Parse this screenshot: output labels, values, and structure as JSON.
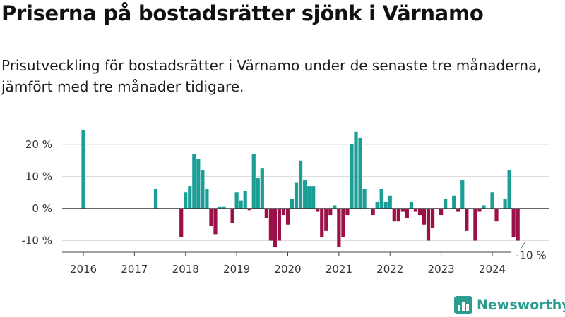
{
  "title": "Priserna på bostadsrätter sjönk i Värnamo",
  "subtitle": "Prisutveckling för bostadsrätter i Värnamo under de senaste tre månaderna, jämfört med tre månader tidigare.",
  "logo": {
    "icon": "bar-chart-icon",
    "text": "Newsworthy"
  },
  "colors": {
    "positive": "#1a9e96",
    "negative": "#9c1049",
    "grid": "#dddddd",
    "baseline": "#333333",
    "brand": "#2a9d8f"
  },
  "chart_data": {
    "type": "bar",
    "title": "Priserna på bostadsrätter sjönk i Värnamo",
    "subtitle": "Prisutveckling för bostadsrätter i Värnamo under de senaste tre månaderna, jämfört med tre månader tidigare.",
    "ylim": [
      -13,
      26
    ],
    "yticks": [
      {
        "value": 20,
        "label": "20 %"
      },
      {
        "value": 10,
        "label": "10 %"
      },
      {
        "value": 0,
        "label": "0 %"
      },
      {
        "value": -10,
        "label": "-10 %"
      }
    ],
    "xticks": [
      {
        "value": 2016,
        "label": "2016"
      },
      {
        "value": 2017,
        "label": "2017"
      },
      {
        "value": 2018,
        "label": "2018"
      },
      {
        "value": 2019,
        "label": "2019"
      },
      {
        "value": 2020,
        "label": "2020"
      },
      {
        "value": 2021,
        "label": "2021"
      },
      {
        "value": 2022,
        "label": "2022"
      },
      {
        "value": 2023,
        "label": "2023"
      },
      {
        "value": 2024,
        "label": "2024"
      }
    ],
    "grid": true,
    "annotation": {
      "text": "-10 %",
      "x": 2024.62,
      "y": -10
    },
    "bars": [
      {
        "x": "2016-01",
        "value": 24.5
      },
      {
        "x": "2017-06",
        "value": 6
      },
      {
        "x": "2017-12",
        "value": -9
      },
      {
        "x": "2018-01",
        "value": 5
      },
      {
        "x": "2018-02",
        "value": 7
      },
      {
        "x": "2018-03",
        "value": 17
      },
      {
        "x": "2018-04",
        "value": 15.5
      },
      {
        "x": "2018-05",
        "value": 12
      },
      {
        "x": "2018-06",
        "value": 6
      },
      {
        "x": "2018-07",
        "value": -5.5
      },
      {
        "x": "2018-08",
        "value": -8
      },
      {
        "x": "2018-09",
        "value": 0.5
      },
      {
        "x": "2018-10",
        "value": 0.5
      },
      {
        "x": "2018-12",
        "value": -4.5
      },
      {
        "x": "2019-01",
        "value": 5
      },
      {
        "x": "2019-02",
        "value": 2.5
      },
      {
        "x": "2019-03",
        "value": 5.5
      },
      {
        "x": "2019-04",
        "value": -0.5
      },
      {
        "x": "2019-05",
        "value": 17
      },
      {
        "x": "2019-06",
        "value": 9.5
      },
      {
        "x": "2019-07",
        "value": 12.5
      },
      {
        "x": "2019-08",
        "value": -3
      },
      {
        "x": "2019-09",
        "value": -10
      },
      {
        "x": "2019-10",
        "value": -12
      },
      {
        "x": "2019-11",
        "value": -10
      },
      {
        "x": "2019-12",
        "value": -2
      },
      {
        "x": "2020-01",
        "value": -5
      },
      {
        "x": "2020-02",
        "value": 3
      },
      {
        "x": "2020-03",
        "value": 8
      },
      {
        "x": "2020-04",
        "value": 15
      },
      {
        "x": "2020-05",
        "value": 9
      },
      {
        "x": "2020-06",
        "value": 7
      },
      {
        "x": "2020-07",
        "value": 7
      },
      {
        "x": "2020-08",
        "value": -1
      },
      {
        "x": "2020-09",
        "value": -9
      },
      {
        "x": "2020-10",
        "value": -7
      },
      {
        "x": "2020-11",
        "value": -2
      },
      {
        "x": "2020-12",
        "value": 1
      },
      {
        "x": "2021-01",
        "value": -12
      },
      {
        "x": "2021-02",
        "value": -9
      },
      {
        "x": "2021-03",
        "value": -2
      },
      {
        "x": "2021-04",
        "value": 20
      },
      {
        "x": "2021-05",
        "value": 24
      },
      {
        "x": "2021-06",
        "value": 22
      },
      {
        "x": "2021-07",
        "value": 6
      },
      {
        "x": "2021-09",
        "value": -2
      },
      {
        "x": "2021-10",
        "value": 2
      },
      {
        "x": "2021-11",
        "value": 6
      },
      {
        "x": "2021-12",
        "value": 2
      },
      {
        "x": "2022-01",
        "value": 4
      },
      {
        "x": "2022-02",
        "value": -4
      },
      {
        "x": "2022-03",
        "value": -4
      },
      {
        "x": "2022-04",
        "value": -1
      },
      {
        "x": "2022-05",
        "value": -3
      },
      {
        "x": "2022-06",
        "value": 2
      },
      {
        "x": "2022-07",
        "value": -1
      },
      {
        "x": "2022-08",
        "value": -2
      },
      {
        "x": "2022-09",
        "value": -5
      },
      {
        "x": "2022-10",
        "value": -10
      },
      {
        "x": "2022-11",
        "value": -6
      },
      {
        "x": "2023-01",
        "value": -2
      },
      {
        "x": "2023-02",
        "value": 3
      },
      {
        "x": "2023-04",
        "value": 4
      },
      {
        "x": "2023-05",
        "value": -1
      },
      {
        "x": "2023-06",
        "value": 9
      },
      {
        "x": "2023-07",
        "value": -7
      },
      {
        "x": "2023-09",
        "value": -10
      },
      {
        "x": "2023-10",
        "value": -1
      },
      {
        "x": "2023-11",
        "value": 1
      },
      {
        "x": "2024-01",
        "value": 5
      },
      {
        "x": "2024-02",
        "value": -4
      },
      {
        "x": "2024-04",
        "value": 3
      },
      {
        "x": "2024-05",
        "value": 12
      },
      {
        "x": "2024-06",
        "value": -9
      },
      {
        "x": "2024-07",
        "value": -10
      }
    ]
  }
}
